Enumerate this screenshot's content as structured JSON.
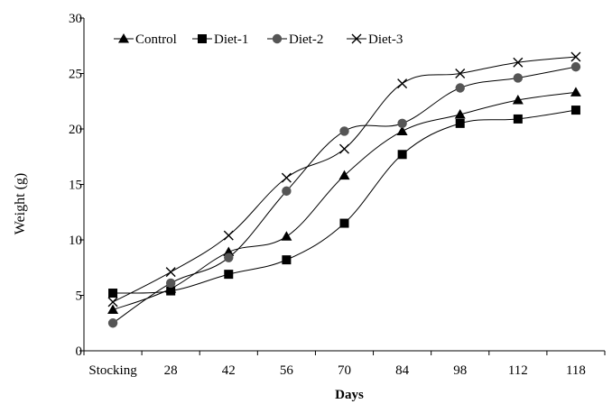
{
  "chart_data": {
    "type": "line",
    "title": "",
    "xlabel": "Days",
    "ylabel": "Weight (g)",
    "ylim": [
      0,
      30
    ],
    "yticks": [
      0,
      5,
      10,
      15,
      20,
      25,
      30
    ],
    "categories": [
      "Stocking",
      "28",
      "42",
      "56",
      "70",
      "84",
      "98",
      "112",
      "118"
    ],
    "grid": false,
    "legend_position": "top-left",
    "series": [
      {
        "name": "Control",
        "marker": "triangle",
        "values": [
          3.7,
          5.6,
          8.9,
          10.3,
          15.8,
          19.8,
          21.3,
          22.6,
          23.3
        ]
      },
      {
        "name": "Diet-1",
        "marker": "square",
        "values": [
          5.2,
          5.4,
          6.9,
          8.2,
          11.5,
          17.7,
          20.5,
          20.9,
          21.7
        ]
      },
      {
        "name": "Diet-2",
        "marker": "circle",
        "values": [
          2.5,
          6.1,
          8.4,
          14.4,
          19.8,
          20.5,
          23.7,
          24.6,
          25.6
        ]
      },
      {
        "name": "Diet-3",
        "marker": "x",
        "values": [
          4.4,
          7.1,
          10.4,
          15.6,
          18.2,
          24.1,
          25.0,
          26.0,
          26.5
        ]
      }
    ],
    "line_color": "#000000"
  }
}
